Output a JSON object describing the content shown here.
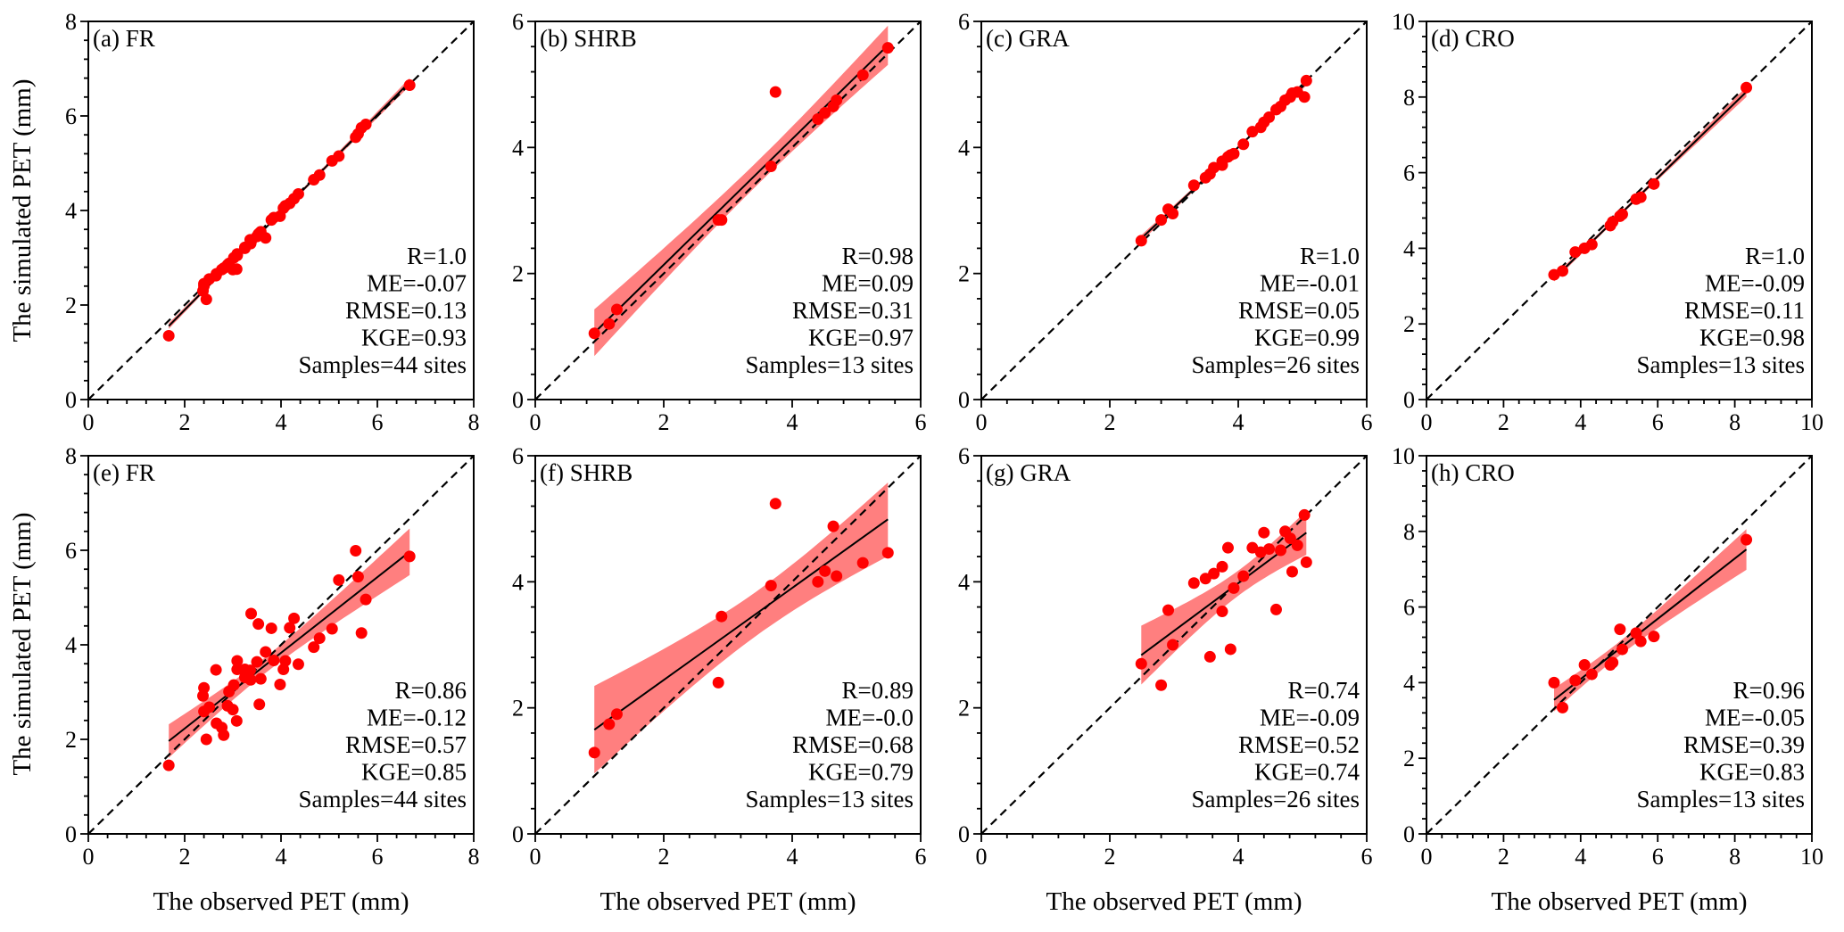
{
  "figure": {
    "ylabel": "The simulated PET (mm)",
    "xlabel": "The observed PET (mm)"
  },
  "colors": {
    "points": "#ff0000",
    "band": "#ff7f7f",
    "fit": "#000000",
    "oneToOne": "#000000"
  },
  "chart_data": [
    {
      "id": "a",
      "type": "scatter",
      "title": "(a) FR",
      "lim": [
        0,
        8
      ],
      "ticks": [
        0,
        2,
        4,
        6,
        8
      ],
      "stats": [
        "R=1.0",
        "ME=-0.07",
        "RMSE=0.13",
        "KGE=0.93",
        "Samples=44 sites"
      ],
      "x": [
        1.67,
        2.45,
        2.4,
        2.38,
        2.4,
        2.51,
        2.65,
        2.66,
        2.77,
        2.81,
        2.89,
        2.92,
        3.0,
        3.02,
        3.08,
        3.09,
        3.09,
        3.25,
        3.25,
        3.37,
        3.38,
        3.5,
        3.53,
        3.55,
        3.58,
        3.68,
        3.8,
        3.85,
        3.98,
        4.05,
        4.09,
        4.18,
        4.27,
        4.36,
        4.68,
        4.8,
        5.06,
        5.2,
        5.55,
        5.6,
        5.67,
        5.76,
        6.67,
        3.36
      ],
      "y": [
        1.35,
        2.12,
        2.4,
        2.3,
        2.45,
        2.55,
        2.62,
        2.66,
        2.75,
        2.78,
        2.85,
        2.88,
        2.75,
        3.0,
        2.76,
        3.05,
        3.08,
        3.2,
        3.22,
        3.3,
        3.35,
        3.45,
        3.5,
        3.52,
        3.55,
        3.42,
        3.8,
        3.85,
        3.88,
        4.05,
        4.1,
        4.15,
        4.25,
        4.35,
        4.65,
        4.75,
        5.05,
        5.15,
        5.55,
        5.62,
        5.75,
        5.82,
        6.65,
        3.38
      ]
    },
    {
      "id": "b",
      "type": "scatter",
      "title": "(b) SHRB",
      "lim": [
        0,
        6
      ],
      "ticks": [
        0,
        2,
        4,
        6
      ],
      "stats": [
        "R=0.98",
        "ME=0.09",
        "RMSE=0.31",
        "KGE=0.97",
        "Samples=13 sites"
      ],
      "x": [
        0.92,
        1.15,
        1.27,
        2.85,
        2.9,
        3.67,
        3.74,
        4.4,
        4.51,
        4.64,
        4.69,
        5.1,
        5.49
      ],
      "y": [
        1.05,
        1.2,
        1.43,
        2.85,
        2.85,
        3.7,
        4.88,
        4.45,
        4.55,
        4.65,
        4.75,
        5.15,
        5.58
      ]
    },
    {
      "id": "c",
      "type": "scatter",
      "title": "(c) GRA",
      "lim": [
        0,
        6
      ],
      "ticks": [
        0,
        2,
        4,
        6
      ],
      "stats": [
        "R=1.0",
        "ME=-0.01",
        "RMSE=0.05",
        "KGE=0.99",
        "Samples=26 sites"
      ],
      "x": [
        2.49,
        2.8,
        2.91,
        2.98,
        3.31,
        3.49,
        3.56,
        3.62,
        3.75,
        3.75,
        3.84,
        3.88,
        3.93,
        4.08,
        4.22,
        4.35,
        4.4,
        4.48,
        4.59,
        4.66,
        4.73,
        4.81,
        4.84,
        4.92,
        5.03,
        5.06
      ],
      "y": [
        2.52,
        2.85,
        3.02,
        2.95,
        3.4,
        3.52,
        3.58,
        3.68,
        3.72,
        3.78,
        3.85,
        3.88,
        3.9,
        4.05,
        4.25,
        4.32,
        4.4,
        4.48,
        4.6,
        4.65,
        4.75,
        4.8,
        4.86,
        4.88,
        4.8,
        5.06
      ]
    },
    {
      "id": "d",
      "type": "scatter",
      "title": "(d) CRO",
      "lim": [
        0,
        10
      ],
      "ticks": [
        0,
        2,
        4,
        6,
        8,
        10
      ],
      "stats": [
        "R=1.0",
        "ME=-0.09",
        "RMSE=0.11",
        "KGE=0.98",
        "Samples=13 sites"
      ],
      "x": [
        3.31,
        3.53,
        3.86,
        4.1,
        4.29,
        4.77,
        4.83,
        5.02,
        5.08,
        5.44,
        5.56,
        5.9,
        8.3
      ],
      "y": [
        3.3,
        3.4,
        3.9,
        4.0,
        4.1,
        4.6,
        4.7,
        4.85,
        4.9,
        5.3,
        5.35,
        5.7,
        8.25
      ]
    },
    {
      "id": "e",
      "type": "scatter",
      "title": "(e) FR",
      "lim": [
        0,
        8
      ],
      "ticks": [
        0,
        2,
        4,
        6,
        8
      ],
      "stats": [
        "R=0.86",
        "ME=-0.12",
        "RMSE=0.57",
        "KGE=0.85",
        "Samples=44 sites"
      ],
      "x": [
        1.67,
        2.45,
        2.4,
        2.38,
        2.4,
        2.51,
        2.65,
        2.66,
        2.77,
        2.81,
        2.89,
        2.92,
        3.0,
        3.02,
        3.08,
        3.09,
        3.09,
        3.25,
        3.25,
        3.37,
        3.38,
        3.5,
        3.53,
        3.55,
        3.58,
        3.68,
        3.8,
        3.85,
        3.98,
        4.05,
        4.09,
        4.18,
        4.27,
        4.36,
        4.68,
        4.8,
        5.06,
        5.2,
        5.55,
        5.6,
        5.67,
        5.76,
        6.67,
        3.36
      ],
      "y": [
        1.45,
        2.0,
        3.09,
        2.92,
        2.59,
        2.68,
        3.47,
        2.34,
        2.25,
        2.09,
        2.71,
        3.01,
        2.63,
        3.15,
        2.39,
        3.66,
        3.48,
        3.48,
        3.31,
        3.26,
        4.66,
        3.64,
        4.44,
        2.74,
        3.28,
        3.85,
        4.35,
        3.67,
        3.16,
        3.48,
        3.66,
        4.36,
        4.56,
        3.59,
        3.95,
        4.14,
        4.34,
        5.37,
        5.99,
        5.44,
        4.25,
        4.96,
        5.87,
        3.46
      ]
    },
    {
      "id": "f",
      "type": "scatter",
      "title": "(f) SHRB",
      "lim": [
        0,
        6
      ],
      "ticks": [
        0,
        2,
        4,
        6
      ],
      "stats": [
        "R=0.89",
        "ME=-0.0",
        "RMSE=0.68",
        "KGE=0.79",
        "Samples=13 sites"
      ],
      "x": [
        0.92,
        1.15,
        1.27,
        2.85,
        2.9,
        3.67,
        3.74,
        4.4,
        4.51,
        4.64,
        4.69,
        5.1,
        5.49
      ],
      "y": [
        1.29,
        1.74,
        1.9,
        2.4,
        3.45,
        3.94,
        5.24,
        4.0,
        4.17,
        4.88,
        4.09,
        4.3,
        4.46
      ]
    },
    {
      "id": "g",
      "type": "scatter",
      "title": "(g) GRA",
      "lim": [
        0,
        6
      ],
      "ticks": [
        0,
        2,
        4,
        6
      ],
      "stats": [
        "R=0.74",
        "ME=-0.09",
        "RMSE=0.52",
        "KGE=0.74",
        "Samples=26 sites"
      ],
      "x": [
        2.49,
        2.8,
        2.91,
        2.98,
        3.31,
        3.49,
        3.56,
        3.62,
        3.75,
        3.75,
        3.84,
        3.88,
        3.93,
        4.08,
        4.22,
        4.35,
        4.4,
        4.48,
        4.59,
        4.66,
        4.73,
        4.81,
        4.84,
        4.92,
        5.03,
        5.06
      ],
      "y": [
        2.7,
        2.36,
        3.55,
        3.0,
        3.98,
        4.05,
        2.81,
        4.13,
        4.24,
        3.53,
        4.54,
        2.93,
        3.9,
        4.09,
        4.54,
        4.47,
        4.78,
        4.52,
        3.56,
        4.5,
        4.8,
        4.69,
        4.16,
        4.58,
        5.06,
        4.31
      ]
    },
    {
      "id": "h",
      "type": "scatter",
      "title": "(h) CRO",
      "lim": [
        0,
        10
      ],
      "ticks": [
        0,
        2,
        4,
        6,
        8,
        10
      ],
      "stats": [
        "R=0.96",
        "ME=-0.05",
        "RMSE=0.39",
        "KGE=0.83",
        "Samples=13 sites"
      ],
      "x": [
        3.31,
        3.53,
        3.86,
        4.1,
        4.29,
        4.77,
        4.83,
        5.02,
        5.08,
        5.44,
        5.56,
        5.9,
        8.3
      ],
      "y": [
        4.0,
        3.34,
        4.06,
        4.47,
        4.22,
        4.47,
        4.53,
        5.41,
        4.88,
        5.31,
        5.09,
        5.22,
        7.78
      ]
    }
  ]
}
